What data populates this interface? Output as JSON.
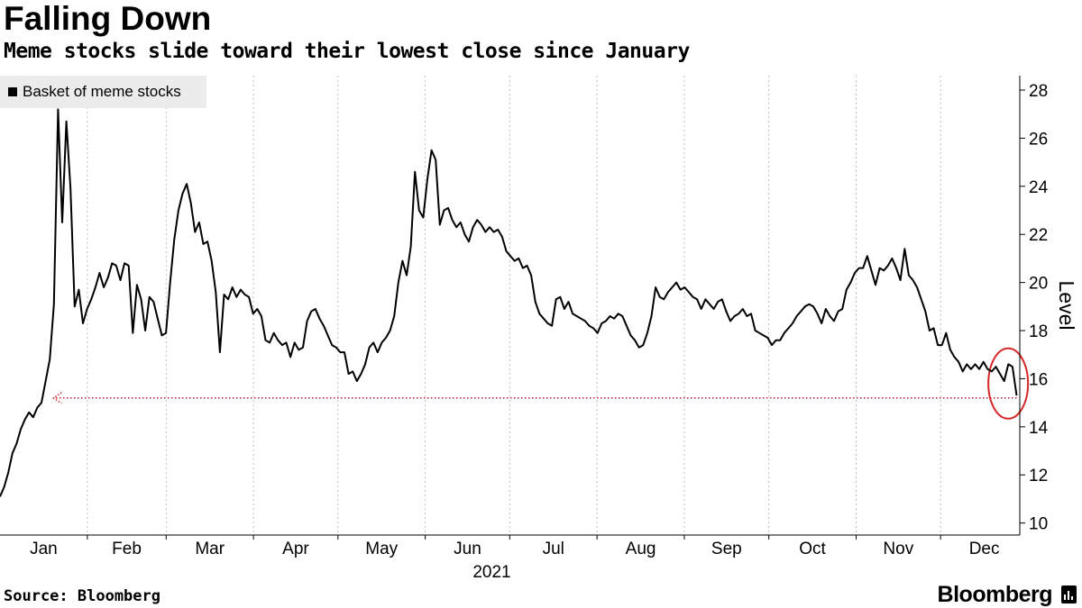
{
  "header": {
    "title": "Falling Down",
    "subtitle": "Meme stocks slide toward their lowest close since January"
  },
  "footer": {
    "source": "Source: Bloomberg",
    "brand": "Bloomberg"
  },
  "colors": {
    "line": "#000000",
    "grid": "#bdbdbd",
    "annotation": "#d62728",
    "legend_bg": "#ececec"
  },
  "chart_data": {
    "type": "line",
    "title": "Falling Down",
    "subtitle": "Meme stocks slide toward their lowest close since January",
    "ylabel": "Level",
    "xlabel": "2021",
    "year": 2021,
    "ylim": [
      9.5,
      28.6
    ],
    "yticks": [
      10,
      12,
      14,
      16,
      18,
      20,
      22,
      24,
      26,
      28
    ],
    "y_axis_position": "right",
    "months": [
      "Jan",
      "Feb",
      "Mar",
      "Apr",
      "May",
      "Jun",
      "Jul",
      "Aug",
      "Sep",
      "Oct",
      "Nov",
      "Dec"
    ],
    "grid": "vertical-dotted",
    "legend": {
      "placement": "top-left",
      "entries": [
        "Basket of meme stocks"
      ]
    },
    "series": [
      {
        "name": "Basket of meme stocks",
        "x_start": "2021-01-01",
        "x_end": "2021-12-28",
        "values": [
          11.1,
          11.5,
          12.1,
          12.9,
          13.3,
          13.9,
          14.3,
          14.6,
          14.4,
          14.8,
          15.0,
          15.9,
          16.8,
          19.1,
          27.2,
          22.5,
          26.7,
          23.9,
          19.0,
          19.7,
          18.3,
          18.9,
          19.3,
          19.8,
          20.4,
          19.8,
          20.2,
          20.8,
          20.7,
          20.1,
          20.8,
          20.7,
          17.9,
          19.9,
          19.3,
          18.0,
          19.4,
          19.2,
          18.5,
          17.8,
          17.9,
          20.0,
          21.8,
          23.0,
          23.7,
          24.1,
          23.3,
          22.1,
          22.5,
          21.6,
          21.7,
          20.9,
          19.6,
          17.1,
          19.5,
          19.3,
          19.8,
          19.4,
          19.7,
          19.5,
          19.4,
          18.7,
          18.9,
          18.6,
          17.6,
          17.5,
          17.9,
          17.6,
          17.4,
          17.5,
          16.9,
          17.5,
          17.2,
          17.3,
          18.4,
          18.8,
          18.9,
          18.5,
          18.2,
          17.8,
          17.4,
          17.3,
          17.1,
          17.1,
          16.2,
          16.3,
          15.9,
          16.2,
          16.6,
          17.3,
          17.5,
          17.1,
          17.5,
          17.7,
          18.0,
          18.6,
          20.0,
          20.9,
          20.3,
          21.5,
          24.6,
          23.0,
          22.7,
          24.3,
          25.5,
          25.1,
          22.4,
          23.0,
          23.1,
          22.6,
          22.3,
          22.5,
          22.0,
          21.7,
          22.3,
          22.6,
          22.4,
          22.1,
          22.3,
          22.1,
          22.2,
          21.9,
          21.3,
          21.1,
          20.9,
          21.0,
          20.6,
          20.7,
          20.3,
          19.2,
          18.7,
          18.5,
          18.3,
          18.2,
          19.3,
          19.4,
          18.9,
          19.2,
          18.7,
          18.6,
          18.5,
          18.4,
          18.2,
          18.1,
          17.9,
          18.3,
          18.4,
          18.6,
          18.5,
          18.7,
          18.6,
          18.2,
          17.8,
          17.6,
          17.3,
          17.4,
          17.9,
          18.6,
          19.8,
          19.4,
          19.3,
          19.6,
          19.8,
          20.0,
          19.7,
          19.8,
          19.6,
          19.4,
          19.3,
          18.9,
          19.3,
          19.1,
          18.9,
          19.2,
          19.3,
          18.8,
          18.4,
          18.6,
          18.7,
          18.9,
          18.6,
          18.7,
          18.0,
          17.9,
          17.8,
          17.7,
          17.4,
          17.6,
          17.6,
          17.9,
          18.1,
          18.3,
          18.6,
          18.8,
          19.0,
          19.1,
          19.0,
          18.7,
          18.3,
          18.9,
          18.6,
          18.4,
          18.8,
          18.9,
          19.7,
          20.0,
          20.4,
          20.6,
          20.6,
          21.1,
          20.5,
          19.9,
          20.6,
          20.5,
          20.7,
          21.0,
          20.6,
          20.1,
          21.4,
          20.3,
          20.1,
          19.8,
          19.3,
          18.8,
          18.0,
          18.1,
          17.4,
          17.4,
          17.9,
          17.2,
          16.9,
          16.7,
          16.3,
          16.6,
          16.4,
          16.6,
          16.4,
          16.7,
          16.4,
          16.3,
          16.5,
          16.2,
          15.9,
          16.6,
          16.5,
          15.3
        ]
      }
    ],
    "annotations": [
      {
        "type": "dotted-arrow",
        "label": "",
        "y": 15.2,
        "x_from": "2021-12-28",
        "x_to": "2021-01-20",
        "color": "#d62728"
      },
      {
        "type": "circle",
        "label": "",
        "center_x": "2021-12-25",
        "center_y": 15.8,
        "color": "#d62728"
      }
    ]
  }
}
